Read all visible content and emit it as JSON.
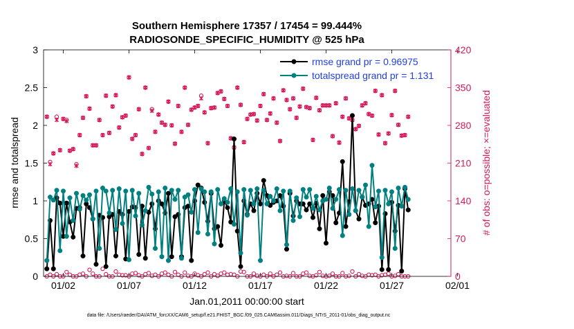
{
  "chart_data": {
    "type": "line",
    "title": "Southern Hemisphere 17357 / 17454 = 99.444%",
    "subtitle": "RADIOSONDE_SPECIFIC_HUMIDITY @ 525 hPa",
    "xlabel": "Jan.01,2011 00:00:00 start",
    "ylabel": "rmse and totalspread",
    "y2label": "# of obs: o=possible; ×=evaluated",
    "footer": "data file: /Users/raeder/DAI/ATM_forcXX/CAM6_setup/f.e21.FHIST_BGC.f09_025.CAM6assim.011/Diags_NTrS_2011-01/obs_diag_output.nc",
    "xlim": [
      0.5,
      31.5
    ],
    "ylim": [
      0,
      3
    ],
    "y2lim": [
      0,
      420
    ],
    "x_ticks": [
      {
        "v": 2,
        "label": "01/02"
      },
      {
        "v": 7,
        "label": "01/07"
      },
      {
        "v": 12,
        "label": "01/12"
      },
      {
        "v": 17,
        "label": "01/17"
      },
      {
        "v": 22,
        "label": "01/22"
      },
      {
        "v": 27,
        "label": "01/27"
      },
      {
        "v": 32,
        "label": "02/01"
      }
    ],
    "y_ticks": [
      {
        "v": 0,
        "label": "0"
      },
      {
        "v": 0.5,
        "label": "0.5"
      },
      {
        "v": 1,
        "label": "1"
      },
      {
        "v": 1.5,
        "label": "1.5"
      },
      {
        "v": 2,
        "label": "2"
      },
      {
        "v": 2.5,
        "label": "2.5"
      },
      {
        "v": 3,
        "label": "3"
      }
    ],
    "y2_ticks": [
      {
        "v": 0,
        "label": "0"
      },
      {
        "v": 70,
        "label": "70"
      },
      {
        "v": 140,
        "label": "140"
      },
      {
        "v": 210,
        "label": "210"
      },
      {
        "v": 280,
        "label": "280"
      },
      {
        "v": 350,
        "label": "350"
      },
      {
        "v": 420,
        "label": "420"
      }
    ],
    "x_start": 0.75,
    "x_step": 0.25,
    "legend_position": "top-right",
    "colors": {
      "rmse": "#000000",
      "spread": "#008080",
      "obs": "#d6185a",
      "legend_text": "#1f3fe0"
    },
    "series": [
      {
        "name": "rmse grand pr = 0.96975",
        "key": "rmse",
        "values": [
          0.1,
          0.74,
          0.1,
          1.04,
          0.97,
          0.53,
          0.97,
          0.72,
          0.52,
          0.9,
          0.91,
          0.27,
          0.96,
          0.91,
          0.76,
          0.16,
          0.81,
          0.78,
          0.13,
          0.79,
          0.82,
          0.27,
          0.86,
          0.82,
          0.23,
          0.86,
          0.92,
          0.91,
          0.29,
          0.93,
          0.24,
          0.85,
          0.96,
          0.63,
          1.0,
          0.96,
          0.84,
          1.1,
          0.26,
          0.79,
          0.82,
          0.26,
          0.91,
          0.93,
          0.21,
          1.0,
          1.21,
          1.17,
          0.98,
          0.73,
          1.1,
          0.63,
          0.66,
          0.41,
          1.0,
          0.91,
          0.72,
          1.82,
          0.6,
          0.13,
          1.0,
          0.82,
          0.96,
          0.87,
          1.1,
          0.96,
          1.27,
          1.07,
          0.94,
          0.98,
          1.0,
          1.07,
          0.93,
          0.36,
          1.1,
          0.8,
          1.0,
          0.96,
          0.96,
          0.88,
          0.96,
          0.78,
          0.97,
          0.63,
          1.07,
          0.44,
          1.12,
          1.07,
          0.71,
          0.84,
          1.52,
          0.66,
          0.99,
          2.13,
          0.87,
          0.76,
          1.05,
          0.94,
          0.96,
          1.02,
          0.71,
          0.93,
          0.09,
          0.83,
          0.09,
          0.98,
          0.6,
          0.94,
          0.07,
          1.16,
          0.88
        ]
      },
      {
        "name": "totalspread grand pr = 1.131",
        "key": "spread",
        "values": [
          0.21,
          1.05,
          1.01,
          1.14,
          0.34,
          1.13,
          0.53,
          1.04,
          0.74,
          1.1,
          0.89,
          1.07,
          1.01,
          1.08,
          0.76,
          1.13,
          0.37,
          1.17,
          1.13,
          0.84,
          1.14,
          0.62,
          1.16,
          0.7,
          1.13,
          0.22,
          1.14,
          0.8,
          1.1,
          0.68,
          0.87,
          1.18,
          1.09,
          0.37,
          1.12,
          0.26,
          1.17,
          0.21,
          1.14,
          1.02,
          1.14,
          0.24,
          1.05,
          1.08,
          0.85,
          1.15,
          0.58,
          1.16,
          1.12,
          0.56,
          1.12,
          0.43,
          1.15,
          0.96,
          1.03,
          0.98,
          1.16,
          0.69,
          1.12,
          0.31,
          1.15,
          0.81,
          1.14,
          0.96,
          1.16,
          0.21,
          1.14,
          0.96,
          1.06,
          1.0,
          1.16,
          0.87,
          1.13,
          0.42,
          1.13,
          0.74,
          1.04,
          0.79,
          1.15,
          1.05,
          1.15,
          0.9,
          1.06,
          0.88,
          1.0,
          1.02,
          1.17,
          0.9,
          1.02,
          1.15,
          0.54,
          1.14,
          0.82,
          1.16,
          0.87,
          1.14,
          1.05,
          1.21,
          0.66,
          1.47,
          0.92,
          1.13,
          0.25,
          1.14,
          0.96,
          1.12,
          0.37,
          1.17,
          0.93,
          1.18,
          1.02
        ]
      }
    ],
    "obs_possible": [
      296,
      212,
      228,
      296,
      234,
      292,
      290,
      233,
      236,
      208,
      262,
      294,
      334,
      311,
      243,
      243,
      290,
      262,
      335,
      266,
      315,
      336,
      276,
      295,
      298,
      369,
      255,
      262,
      310,
      227,
      350,
      238,
      310,
      268,
      300,
      285,
      281,
      324,
      280,
      246,
      316,
      268,
      350,
      281,
      309,
      313,
      316,
      335,
      304,
      247,
      312,
      313,
      340,
      343,
      329,
      316,
      256,
      239,
      350,
      318,
      249,
      292,
      300,
      301,
      289,
      316,
      338,
      290,
      302,
      330,
      285,
      251,
      345,
      327,
      310,
      330,
      294,
      315,
      348,
      314,
      312,
      253,
      331,
      308,
      317,
      317,
      317,
      260,
      321,
      248,
      296,
      330,
      293,
      290,
      273,
      279,
      317,
      321,
      301,
      298,
      344,
      263,
      336,
      247,
      265,
      299,
      344,
      281,
      261,
      262,
      296
    ],
    "obs_used": [
      296,
      208,
      228,
      290,
      234,
      292,
      288,
      233,
      236,
      205,
      262,
      294,
      334,
      311,
      243,
      243,
      290,
      262,
      335,
      266,
      315,
      336,
      276,
      295,
      298,
      369,
      255,
      262,
      310,
      227,
      350,
      238,
      307,
      268,
      300,
      285,
      281,
      324,
      280,
      246,
      316,
      268,
      350,
      281,
      309,
      313,
      316,
      330,
      304,
      247,
      312,
      313,
      340,
      343,
      329,
      316,
      256,
      239,
      350,
      318,
      249,
      292,
      300,
      301,
      289,
      316,
      338,
      290,
      302,
      330,
      285,
      251,
      345,
      327,
      310,
      330,
      294,
      315,
      348,
      314,
      312,
      253,
      331,
      308,
      317,
      317,
      317,
      260,
      321,
      248,
      296,
      330,
      293,
      290,
      273,
      279,
      317,
      321,
      301,
      298,
      344,
      263,
      336,
      247,
      265,
      299,
      344,
      281,
      261,
      262,
      296
    ],
    "obs_low_possible": [
      0,
      3,
      0,
      4,
      0,
      0,
      8,
      3,
      0,
      0,
      3,
      5,
      0,
      12,
      5,
      0,
      0,
      14,
      4,
      0,
      0,
      9,
      3,
      2,
      2,
      0,
      5,
      6,
      2,
      0,
      4,
      6,
      1,
      3,
      0,
      5,
      7,
      3,
      0,
      8,
      3,
      0,
      7,
      1,
      0,
      5,
      2,
      0,
      4,
      7,
      0,
      4,
      1,
      5,
      7,
      3,
      4,
      3,
      0,
      9,
      8,
      0,
      0,
      5,
      1,
      0,
      3,
      0,
      5,
      0,
      3,
      7,
      0,
      1,
      0,
      6,
      0,
      0,
      5,
      7,
      1,
      0,
      2,
      8,
      1,
      0,
      1,
      5,
      0,
      0,
      6,
      0,
      1,
      9,
      0,
      4,
      1,
      0,
      3,
      2,
      3,
      0,
      2,
      3,
      5,
      0,
      1,
      4,
      0,
      0,
      0
    ]
  }
}
